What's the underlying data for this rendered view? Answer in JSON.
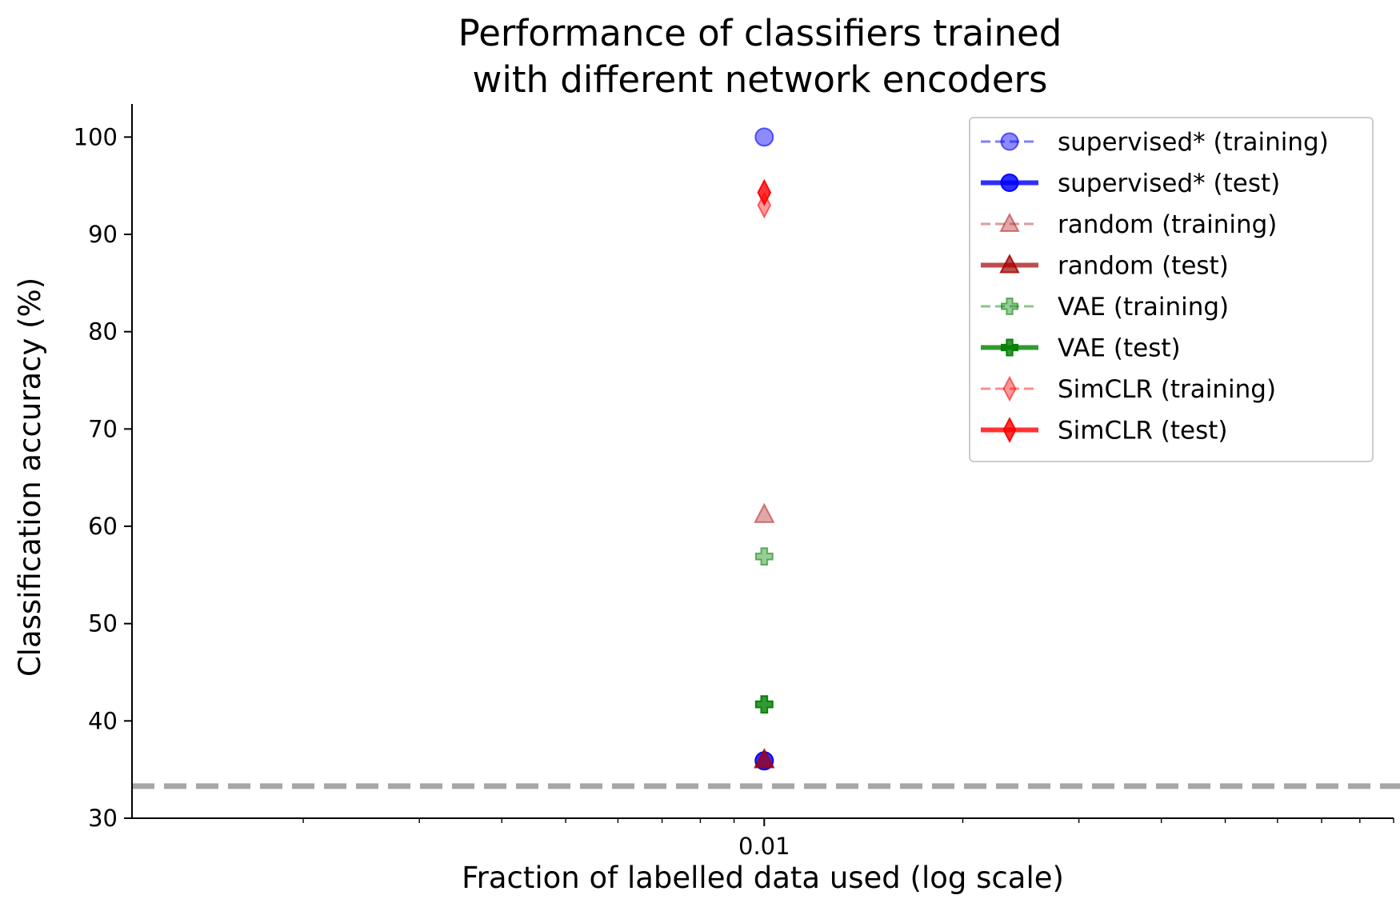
{
  "chart_data": {
    "type": "scatter",
    "title_lines": [
      "Performance of classifiers trained",
      "with different network encoders"
    ],
    "xlabel": "Fraction of labelled data used (log scale)",
    "ylabel": "Classification accuracy (%)",
    "x_scale": "log",
    "xlim": [
      0.0011,
      0.09
    ],
    "ylim": [
      30,
      103.4
    ],
    "yticks": [
      30,
      40,
      50,
      60,
      70,
      80,
      90,
      100
    ],
    "xticks": [
      {
        "value": 0.01,
        "label": "0.01"
      }
    ],
    "grid": false,
    "legend_position": "top-right",
    "chance_level": {
      "y": 33.3,
      "color": "#a6a6a6"
    },
    "series": [
      {
        "name": "supervised* (training)",
        "color": "#0000ff",
        "marker": "circle",
        "linestyle": "dashed",
        "opacity": 0.45,
        "points": [
          {
            "x": 0.01,
            "y": 100.0
          }
        ]
      },
      {
        "name": "supervised* (test)",
        "color": "#0000ff",
        "marker": "circle",
        "linestyle": "solid",
        "opacity": 0.82,
        "points": [
          {
            "x": 0.01,
            "y": 35.9
          }
        ]
      },
      {
        "name": "random (training)",
        "color": "#b22222",
        "marker": "triangle",
        "linestyle": "dashed",
        "opacity": 0.4,
        "points": [
          {
            "x": 0.01,
            "y": 61.2
          }
        ]
      },
      {
        "name": "random (test)",
        "color": "#a50000",
        "marker": "triangle",
        "linestyle": "solid",
        "opacity": 0.7,
        "points": [
          {
            "x": 0.01,
            "y": 36.0
          }
        ]
      },
      {
        "name": "VAE (training)",
        "color": "#008000",
        "marker": "plus",
        "linestyle": "dashed",
        "opacity": 0.4,
        "points": [
          {
            "x": 0.01,
            "y": 56.9
          }
        ]
      },
      {
        "name": "VAE (test)",
        "color": "#008000",
        "marker": "plus",
        "linestyle": "solid",
        "opacity": 0.8,
        "points": [
          {
            "x": 0.01,
            "y": 41.7
          }
        ]
      },
      {
        "name": "SimCLR (training)",
        "color": "#ff0000",
        "marker": "diamond",
        "linestyle": "dashed",
        "opacity": 0.4,
        "points": [
          {
            "x": 0.01,
            "y": 93.0
          }
        ]
      },
      {
        "name": "SimCLR (test)",
        "color": "#ff0000",
        "marker": "diamond",
        "linestyle": "solid",
        "opacity": 0.8,
        "points": [
          {
            "x": 0.01,
            "y": 94.3
          }
        ]
      }
    ]
  }
}
